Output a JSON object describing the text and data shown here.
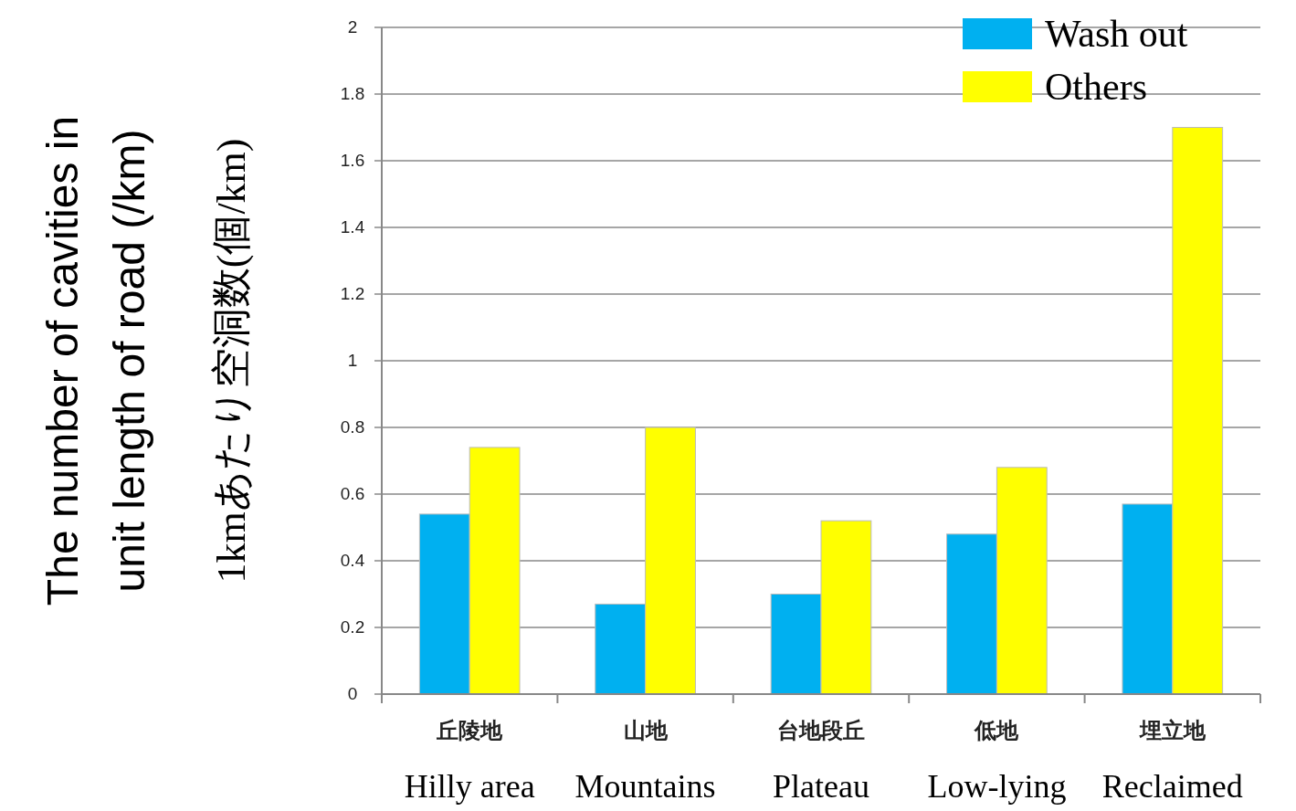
{
  "chart_data": {
    "type": "bar",
    "ylabel": "The number of cavities in\nunit length of road (/km)\n1kmあたり空洞数(個/km)",
    "categories": [
      "丘陵地\nHilly area",
      "山地\nMountains",
      "台地段丘\nPlateau",
      "低地\nLow-lying",
      "埋立地\nReclaimed"
    ],
    "series": [
      {
        "name": "Wash out",
        "color": "#00b0f0",
        "values": [
          0.54,
          0.27,
          0.3,
          0.48,
          0.57
        ]
      },
      {
        "name": "Others",
        "color": "#ffff00",
        "values": [
          0.74,
          0.8,
          0.52,
          0.68,
          1.7
        ]
      }
    ],
    "ylim": [
      0,
      2
    ],
    "yticks": [
      0,
      0.2,
      0.4,
      0.6,
      0.8,
      1,
      1.2,
      1.4,
      1.6,
      1.8,
      2
    ],
    "grid": "y",
    "legend": "top right"
  }
}
